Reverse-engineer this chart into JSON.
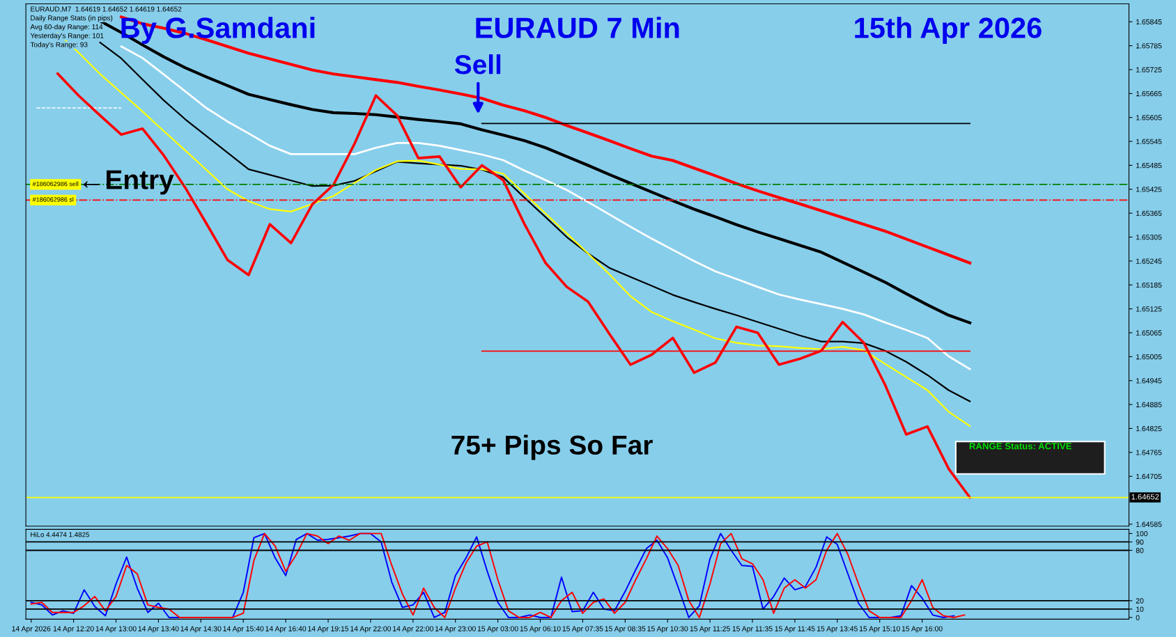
{
  "chart_data": [
    {
      "type": "line",
      "title": "EURAUD 7 Min",
      "categories": [
        null,
        null,
        null,
        null,
        null,
        null,
        null,
        null,
        null,
        null,
        null,
        null,
        null,
        null,
        null,
        null,
        null,
        null,
        null,
        null,
        null,
        null,
        null,
        null,
        null,
        null,
        null,
        null,
        null,
        null,
        null,
        null,
        null,
        null,
        null,
        null,
        null,
        null,
        null,
        null,
        null,
        null,
        null,
        null,
        null,
        null,
        null,
        null,
        null,
        null,
        null,
        null
      ],
      "ylim": [
        1.6458,
        1.6589
      ],
      "yticks": [
        1.65845,
        1.65785,
        1.65725,
        1.65665,
        1.65605,
        1.65545,
        1.65485,
        1.65425,
        1.65365,
        1.65305,
        1.65245,
        1.65185,
        1.65125,
        1.65065,
        1.65005,
        1.64945,
        1.64885,
        1.64825,
        1.64765,
        1.64705,
        1.64585
      ],
      "tick_labels": "y",
      "grid": false,
      "legend": false,
      "series": [
        {
          "color": "#ff0000",
          "values": [
            null,
            null,
            null,
            null,
            1.65857,
            1.6584,
            1.65829,
            1.65816,
            1.658,
            1.65783,
            1.65766,
            1.65752,
            1.65738,
            1.65724,
            1.65714,
            1.65707,
            1.657,
            1.65693,
            1.65683,
            1.65674,
            1.65664,
            1.65653,
            1.65636,
            1.65622,
            1.65605,
            1.65585,
            1.65566,
            1.65547,
            1.65527,
            1.65508,
            1.65497,
            1.65478,
            1.65459,
            1.65439,
            1.65421,
            1.65404,
            1.65388,
            1.65371,
            1.65354,
            1.65337,
            1.6532,
            1.653,
            1.6528,
            1.6526,
            1.6524,
            null,
            null,
            null,
            null,
            null,
            null,
            null
          ]
        },
        {
          "color": "#000000",
          "values": [
            null,
            null,
            null,
            1.65847,
            1.65818,
            1.65787,
            1.65757,
            1.6573,
            1.65707,
            1.65685,
            1.65663,
            1.6565,
            1.65637,
            1.65625,
            1.65617,
            1.65615,
            1.65612,
            1.65606,
            1.656,
            1.65595,
            1.65589,
            1.65574,
            1.65561,
            1.65547,
            1.65529,
            1.65507,
            1.65485,
            1.65462,
            1.6544,
            1.65418,
            1.65396,
            1.65375,
            1.65356,
            1.65336,
            1.65318,
            1.65301,
            1.65284,
            1.65267,
            1.65242,
            1.65217,
            1.65192,
            1.65163,
            1.65135,
            1.65109,
            1.6509,
            null,
            null,
            null,
            null,
            null,
            null,
            null
          ]
        },
        {
          "color": "#ffffff",
          "values": [
            null,
            null,
            null,
            null,
            1.65783,
            1.65754,
            1.65713,
            1.65671,
            1.65629,
            1.65595,
            1.65565,
            1.65534,
            1.65513,
            1.65513,
            1.65513,
            1.65513,
            1.65529,
            1.65541,
            1.65541,
            1.65534,
            1.65523,
            1.65512,
            1.65498,
            1.65472,
            1.65448,
            1.65423,
            1.65393,
            1.65362,
            1.65331,
            1.65301,
            1.65273,
            1.65245,
            1.65219,
            1.652,
            1.6518,
            1.65161,
            1.65148,
            1.65137,
            1.65125,
            1.65111,
            1.65091,
            1.65072,
            1.65052,
            1.65006,
            1.64974,
            null,
            null,
            null,
            null,
            null,
            null,
            null
          ]
        },
        {
          "color": "#000000",
          "values": [
            null,
            null,
            null,
            1.65793,
            1.65753,
            1.657,
            1.65648,
            1.65601,
            1.65559,
            1.65517,
            1.65475,
            1.65461,
            1.65447,
            1.65433,
            1.65434,
            1.65446,
            1.6547,
            1.65494,
            1.6549,
            1.65487,
            1.65484,
            1.65474,
            1.65455,
            1.65404,
            1.65355,
            1.65305,
            1.65264,
            1.65228,
            1.65205,
            1.65183,
            1.6516,
            1.65142,
            1.65125,
            1.65109,
            1.65092,
            1.65075,
            1.65058,
            1.65043,
            1.65043,
            1.65039,
            1.6502,
            1.64992,
            1.64959,
            1.64921,
            1.64893,
            null,
            null,
            null,
            null,
            null,
            null,
            null
          ]
        },
        {
          "color": "#ffff00",
          "values": [
            null,
            1.65817,
            1.65767,
            1.65714,
            1.65667,
            1.6562,
            1.65571,
            1.65523,
            1.65474,
            1.65425,
            1.65395,
            1.65375,
            1.65369,
            1.65388,
            1.65408,
            1.65441,
            1.65473,
            1.65495,
            1.65497,
            1.65487,
            1.65476,
            1.65475,
            1.65464,
            1.65414,
            1.65364,
            1.65314,
            1.65264,
            1.65212,
            1.65157,
            1.65117,
            1.65094,
            1.65073,
            1.65051,
            1.6504,
            1.65033,
            1.65031,
            1.65027,
            1.65024,
            1.6503,
            1.65021,
            1.64987,
            1.64954,
            1.64921,
            1.64867,
            1.64831,
            null,
            null,
            null,
            null,
            null,
            null,
            null
          ]
        },
        {
          "color": "#ffffff",
          "line_style": "dashed",
          "values": [
            1.65629,
            1.65629,
            1.65629,
            1.65629,
            1.65629,
            null,
            null,
            null,
            null,
            null,
            null,
            null,
            null,
            null,
            null,
            null,
            null,
            null,
            null,
            null,
            null,
            null,
            null,
            null,
            null,
            null,
            null,
            null,
            null,
            null,
            null,
            null,
            null,
            null,
            null,
            null,
            null,
            null,
            null,
            null,
            null,
            null,
            null,
            null,
            null,
            null,
            null,
            null,
            null,
            null,
            null,
            null
          ]
        },
        {
          "color": "#000000",
          "values": [
            null,
            null,
            null,
            null,
            null,
            null,
            null,
            null,
            null,
            null,
            null,
            null,
            null,
            null,
            null,
            null,
            null,
            null,
            null,
            null,
            null,
            1.6559,
            1.6559,
            1.6559,
            1.6559,
            1.6559,
            1.6559,
            1.6559,
            1.6559,
            1.6559,
            1.6559,
            1.6559,
            1.6559,
            1.6559,
            1.6559,
            1.6559,
            1.6559,
            1.6559,
            1.6559,
            1.6559,
            1.6559,
            1.6559,
            1.6559,
            1.6559,
            1.6559,
            null,
            null,
            null,
            null,
            null,
            null,
            null
          ]
        },
        {
          "color": "#ff0000",
          "values": [
            null,
            null,
            null,
            null,
            null,
            null,
            null,
            null,
            null,
            null,
            null,
            null,
            null,
            null,
            null,
            null,
            null,
            null,
            null,
            null,
            null,
            1.65019,
            1.65019,
            1.65019,
            1.65019,
            1.65019,
            1.65019,
            1.65019,
            1.65019,
            1.65019,
            1.65019,
            1.65019,
            1.65019,
            1.65019,
            1.65019,
            1.65019,
            1.65019,
            1.65019,
            1.65019,
            1.65019,
            1.65019,
            1.65019,
            1.65019,
            1.65019,
            1.65019,
            null,
            null,
            null,
            null,
            null,
            null,
            null
          ]
        },
        {
          "color": "#ff0000",
          "values": [
            null,
            1.65715,
            1.65659,
            1.6561,
            1.65562,
            1.65577,
            1.6551,
            1.6543,
            1.6534,
            1.65248,
            1.6521,
            1.65337,
            1.6529,
            1.65387,
            1.65436,
            1.6554,
            1.6566,
            1.6561,
            1.65503,
            1.65507,
            1.6543,
            1.65485,
            1.65448,
            1.65338,
            1.6524,
            1.6518,
            1.65143,
            1.65063,
            1.64985,
            1.6501,
            1.65052,
            1.64965,
            1.6499,
            1.6508,
            1.65065,
            1.64985,
            1.65,
            1.6502,
            1.65092,
            1.6504,
            1.64935,
            1.6481,
            1.6483,
            1.64724,
            1.64652,
            null,
            null,
            null,
            null,
            null,
            null,
            null
          ]
        }
      ],
      "ref_lines": [
        {
          "axis": "y",
          "value": 1.65437,
          "label": "#186062986 sell",
          "color": "#008000",
          "line_style": "dashdot"
        },
        {
          "axis": "y",
          "value": 1.65398,
          "label": "#186062986 sl",
          "color": "#ff0000",
          "line_style": "dashdot"
        },
        {
          "axis": "y",
          "value": 1.64652,
          "label": "1.64652",
          "color": "#ffff00",
          "line_style": "solid"
        }
      ],
      "annotations": [
        "EURAUD,M7  1.64619 1.64652 1.64619 1.64652",
        "Daily Range Stats (in pips)",
        "Avg 60-day Range: 114",
        "Yesterday's Range: 101",
        "Today's Range: 93",
        "By G.Samdani",
        "15th Apr 2026",
        "←Entry",
        "75+ Pips So Far",
        "RANGE Status: ACTIVE",
        "Sell"
      ]
    },
    {
      "type": "line",
      "categories": [
        "14 Apr 2026",
        null,
        null,
        null,
        "14 Apr 12:20",
        null,
        null,
        null,
        "14 Apr 13:00",
        null,
        null,
        null,
        "14 Apr 13:40",
        null,
        null,
        null,
        "14 Apr 14:30",
        null,
        null,
        null,
        "14 Apr 15:40",
        null,
        null,
        null,
        "14 Apr 16:40",
        null,
        null,
        null,
        "14 Apr 19:15",
        null,
        null,
        null,
        "14 Apr 22:00",
        null,
        null,
        null,
        "14 Apr 22:00",
        null,
        null,
        null,
        "14 Apr 23:00",
        null,
        null,
        null,
        "15 Apr 03:00",
        null,
        null,
        null,
        "15 Apr 06:10",
        null,
        null,
        null,
        "15 Apr 07:35",
        null,
        null,
        null,
        "15 Apr 08:35",
        null,
        null,
        null,
        "15 Apr 10:30",
        null,
        null,
        null,
        "15 Apr 11:25",
        null,
        null,
        null,
        "15 Apr 11:35",
        null,
        null,
        null,
        "15 Apr 11:45",
        null,
        null,
        null,
        "15 Apr 13:45",
        null,
        null,
        null,
        "15 Apr 15:10",
        null,
        null,
        null,
        "15 Apr 16:00",
        null,
        null,
        null,
        null,
        null,
        null,
        null,
        null,
        null,
        null,
        null,
        null,
        null,
        null,
        null,
        null,
        null,
        null,
        null
      ],
      "ylim": [
        -2,
        105
      ],
      "yticks": [
        0,
        10,
        20,
        80,
        90,
        100
      ],
      "grid": false,
      "legend": false,
      "ref_lines": [
        {
          "axis": "y",
          "value": 90,
          "color": "#000000"
        },
        {
          "axis": "y",
          "value": 80,
          "color": "#000000"
        },
        {
          "axis": "y",
          "value": 20,
          "color": "#000000"
        },
        {
          "axis": "y",
          "value": 10,
          "color": "#000000"
        }
      ],
      "series": [
        {
          "color": "#0000ff",
          "values": [
            18,
            15,
            3,
            8,
            5,
            33,
            13,
            2,
            40,
            72,
            35,
            6,
            17,
            0,
            0,
            0,
            0,
            0,
            0,
            0,
            30,
            95,
            100,
            71,
            50,
            93,
            100,
            92,
            93,
            95,
            97,
            100,
            100,
            90,
            42,
            12,
            15,
            30,
            0,
            6,
            50,
            71,
            96,
            55,
            18,
            0,
            0,
            3,
            0,
            0,
            48,
            7,
            8,
            30,
            10,
            8,
            31,
            57,
            82,
            92,
            71,
            36,
            0,
            14,
            70,
            100,
            80,
            62,
            61,
            10,
            25,
            47,
            33,
            37,
            60,
            96,
            87,
            52,
            17,
            0,
            0,
            0,
            2,
            38,
            23,
            3,
            0,
            2,
            null,
            null,
            null,
            null,
            null,
            null,
            null,
            null,
            null,
            null,
            null,
            null,
            null,
            null,
            null,
            null
          ]
        },
        {
          "color": "#ff0000",
          "values": [
            16,
            18,
            6,
            6,
            6,
            14,
            25,
            8,
            25,
            62,
            52,
            15,
            12,
            10,
            0,
            0,
            0,
            0,
            0,
            0,
            5,
            68,
            100,
            85,
            55,
            75,
            100,
            97,
            88,
            97,
            92,
            100,
            100,
            100,
            62,
            28,
            3,
            35,
            12,
            0,
            35,
            65,
            85,
            90,
            45,
            8,
            0,
            0,
            6,
            0,
            20,
            30,
            5,
            18,
            22,
            5,
            18,
            45,
            70,
            97,
            82,
            62,
            20,
            0,
            40,
            88,
            100,
            70,
            64,
            45,
            5,
            35,
            45,
            35,
            45,
            80,
            100,
            75,
            40,
            8,
            0,
            0,
            0,
            20,
            45,
            12,
            2,
            0,
            3,
            null,
            null,
            null,
            null,
            null,
            null,
            null,
            null,
            null,
            null,
            null,
            null,
            null,
            null,
            null
          ]
        }
      ],
      "annotations": [
        "HiLo 4.4474 1.4825"
      ]
    }
  ]
}
